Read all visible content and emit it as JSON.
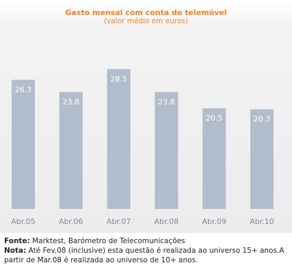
{
  "chart_data": {
    "type": "bar",
    "title": "Gasto mensal com conta de telemóvel",
    "subtitle": "(valor médio em euros)",
    "categories": [
      "Abr.05",
      "Abr.06",
      "Abr.07",
      "Abr.08",
      "Abr.09",
      "Abr.10"
    ],
    "values": [
      26.3,
      23.8,
      28.5,
      23.8,
      20.5,
      20.3
    ],
    "data_labels": [
      "26.3",
      "23.8",
      "28.5",
      "23.8",
      "20.5",
      "20.3"
    ],
    "ylim": [
      0,
      30
    ],
    "grid": false,
    "legend": "none",
    "bar_color": "#b1bdcc",
    "label_color": "#ffffff"
  },
  "footer": {
    "source_label": "Fonte:",
    "source_text": " Marktest, Barómetro de Telecomunicações",
    "note_label": "Nota:",
    "note_text": " Até Fev.08 (inclusive) esta questão é realizada ao universo 15+ anos.A partir de Mar.08 é realizada ao universo de 10+ anos."
  },
  "colors": {
    "title": "#f08020",
    "tick_text": "#888888"
  }
}
